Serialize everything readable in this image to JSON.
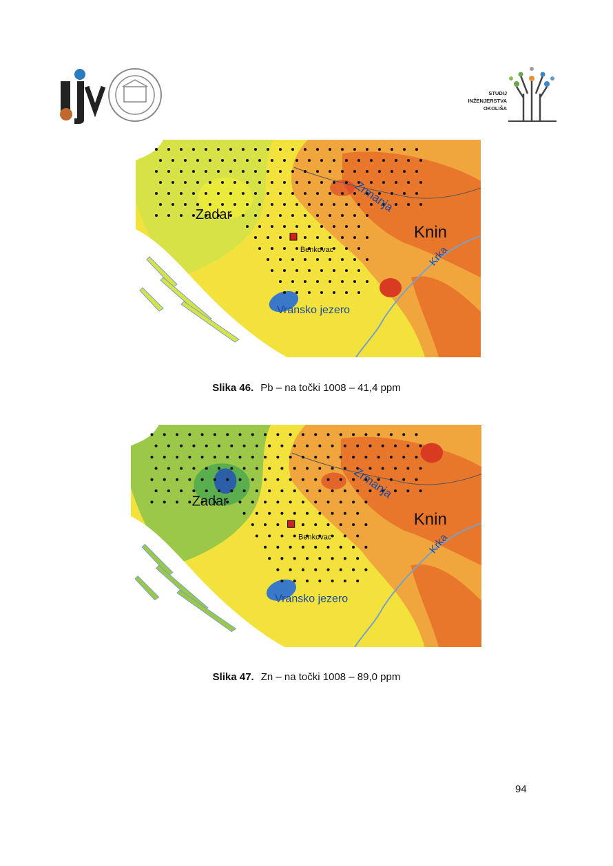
{
  "header": {
    "right_logo": {
      "lines": [
        "STUDIJ",
        "INŽENJERSTVA",
        "OKOLIŠA"
      ]
    }
  },
  "figures": [
    {
      "number": "Slika 46.",
      "caption": "Pb – na točki 1008 – 41,4 ppm",
      "labels": [
        "Zadar",
        "Knin",
        "Krka",
        "Zrmanja",
        "Benkovac",
        "Vransko jezero"
      ]
    },
    {
      "number": "Slika 47.",
      "caption": "Zn – na točki 1008 – 89,0 ppm",
      "labels": [
        "Zadar",
        "Knin",
        "Krka",
        "Zrmanja",
        "Benkovac",
        "Vransko jezero"
      ]
    }
  ],
  "page_number": "94"
}
